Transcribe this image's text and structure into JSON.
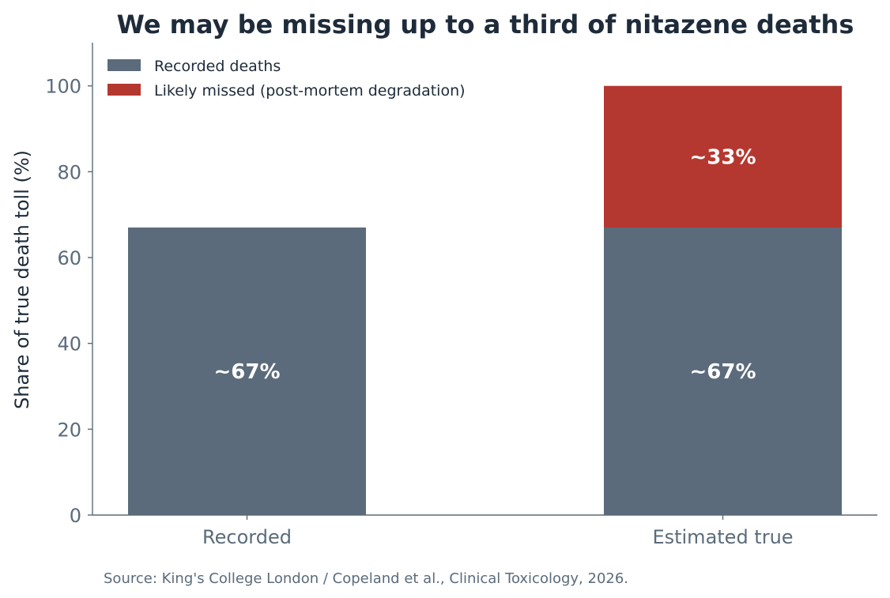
{
  "colors": {
    "recorded": "#5b6b7b",
    "missed": "#b53830",
    "title": "#1e2b3a",
    "axis": "#5b6b7b",
    "ylabel": "#1e2b3a",
    "legend_text": "#1e2b3a",
    "data_label": "#ffffff",
    "source": "#5b6b7b"
  },
  "chart_data": {
    "type": "bar",
    "stacked": true,
    "title": "We may be missing up to a third of nitazene deaths",
    "xlabel": "",
    "ylabel": "Share of true death toll (%)",
    "categories": [
      "Recorded",
      "Estimated true"
    ],
    "series": [
      {
        "name": "Recorded deaths",
        "values": [
          67,
          67
        ],
        "labels": [
          "~67%",
          "~67%"
        ]
      },
      {
        "name": "Likely missed (post-mortem degradation)",
        "values": [
          0,
          33
        ],
        "labels": [
          "",
          "~33%"
        ]
      }
    ],
    "ylim": [
      0,
      110
    ],
    "yticks": [
      0,
      20,
      40,
      60,
      80,
      100
    ],
    "grid": false,
    "legend_position": "top-left"
  },
  "footer": {
    "source": "Source: King's College London / Copeland et al., Clinical Toxicology, 2026."
  }
}
